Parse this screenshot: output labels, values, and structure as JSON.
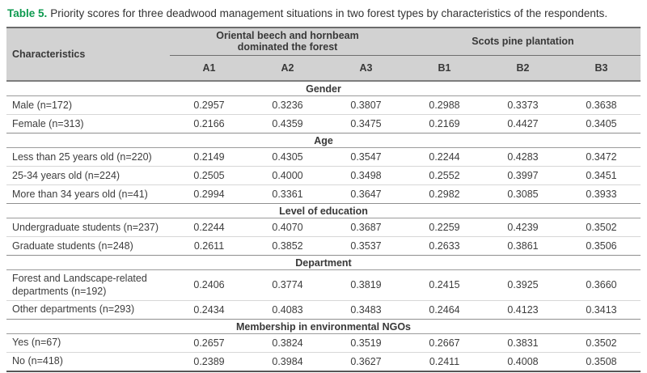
{
  "caption": {
    "label": "Table 5.",
    "text": "Priority scores for three deadwood management situations in two forest types by characteristics of the respondents."
  },
  "colors": {
    "accent_green": "#0d9a4f",
    "header_background": "#d2d2d2"
  },
  "table": {
    "characteristics_header": "Characteristics",
    "groups": [
      {
        "label": "Oriental beech and hornbeam dominated the forest",
        "columns": [
          "A1",
          "A2",
          "A3"
        ]
      },
      {
        "label": "Scots pine plantation",
        "columns": [
          "B1",
          "B2",
          "B3"
        ]
      }
    ],
    "columns": [
      "A1",
      "A2",
      "A3",
      "B1",
      "B2",
      "B3"
    ],
    "sections": [
      {
        "title": "Gender",
        "rows": [
          {
            "label": "Male (n=172)",
            "values": [
              "0.2957",
              "0.3236",
              "0.3807",
              "0.2988",
              "0.3373",
              "0.3638"
            ]
          },
          {
            "label": "Female (n=313)",
            "values": [
              "0.2166",
              "0.4359",
              "0.3475",
              "0.2169",
              "0.4427",
              "0.3405"
            ]
          }
        ]
      },
      {
        "title": "Age",
        "rows": [
          {
            "label": "Less than 25 years old (n=220)",
            "values": [
              "0.2149",
              "0.4305",
              "0.3547",
              "0.2244",
              "0.4283",
              "0.3472"
            ]
          },
          {
            "label": "25-34 years old (n=224)",
            "values": [
              "0.2505",
              "0.4000",
              "0.3498",
              "0.2552",
              "0.3997",
              "0.3451"
            ]
          },
          {
            "label": "More than 34 years old (n=41)",
            "values": [
              "0.2994",
              "0.3361",
              "0.3647",
              "0.2982",
              "0.3085",
              "0.3933"
            ]
          }
        ]
      },
      {
        "title": "Level of education",
        "rows": [
          {
            "label": "Undergraduate students (n=237)",
            "values": [
              "0.2244",
              "0.4070",
              "0.3687",
              "0.2259",
              "0.4239",
              "0.3502"
            ]
          },
          {
            "label": "Graduate students (n=248)",
            "values": [
              "0.2611",
              "0.3852",
              "0.3537",
              "0.2633",
              "0.3861",
              "0.3506"
            ]
          }
        ]
      },
      {
        "title": "Department",
        "rows": [
          {
            "label": "Forest and Landscape-related departments (n=192)",
            "values": [
              "0.2406",
              "0.3774",
              "0.3819",
              "0.2415",
              "0.3925",
              "0.3660"
            ]
          },
          {
            "label": "Other departments (n=293)",
            "values": [
              "0.2434",
              "0.4083",
              "0.3483",
              "0.2464",
              "0.4123",
              "0.3413"
            ]
          }
        ]
      },
      {
        "title": "Membership in environmental NGOs",
        "rows": [
          {
            "label": "Yes (n=67)",
            "values": [
              "0.2657",
              "0.3824",
              "0.3519",
              "0.2667",
              "0.3831",
              "0.3502"
            ]
          },
          {
            "label": "No (n=418)",
            "values": [
              "0.2389",
              "0.3984",
              "0.3627",
              "0.2411",
              "0.4008",
              "0.3508"
            ]
          }
        ]
      }
    ]
  }
}
